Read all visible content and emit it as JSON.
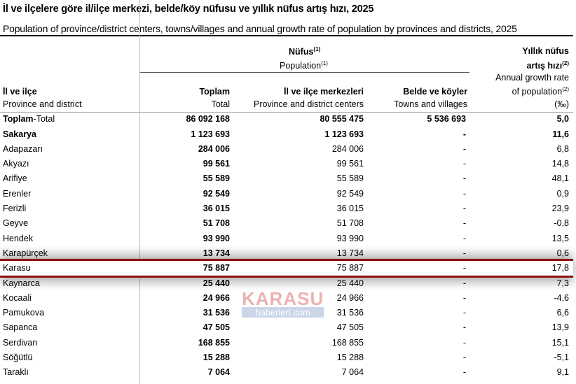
{
  "title": "İl ve ilçelere göre il/ilçe merkezi, belde/köy nüfusu ve yıllık nüfus artış hızı, 2025",
  "subtitle": "Population of province/district centers, towns/villages and annual growth rate of population by provinces and districts, 2025",
  "header": {
    "nufus": "Nüfus",
    "population": "Population",
    "sup1": "(1)",
    "sup2": "(2)",
    "rate_tr1": "Yıllık nüfus",
    "rate_tr2": "artış hızı",
    "rate_en1": "Annual growth rate",
    "rate_en2": "of population",
    "rate_unit": "(‰)",
    "col0_tr": "İl ve ilçe",
    "col0_en": "Province and district",
    "col1_tr": "Toplam",
    "col1_en": "Total",
    "col2_tr": "İl ve ilçe merkezleri",
    "col2_en": "Province and district centers",
    "col3_tr": "Belde ve köyler",
    "col3_en": "Towns and villages"
  },
  "total_row": {
    "name_bold": "Toplam",
    "name_rest": "-Total",
    "total": "86 092 168",
    "centers": "80 555 475",
    "villages": "5 536 693",
    "rate": "5,0"
  },
  "rows": [
    {
      "name": "Sakarya",
      "total": "1 123 693",
      "centers": "1 123 693",
      "villages": "-",
      "rate": "11,6",
      "bold": true
    },
    {
      "name": "Adapazarı",
      "total": "284 006",
      "centers": "284 006",
      "villages": "-",
      "rate": "6,8"
    },
    {
      "name": "Akyazı",
      "total": "99 561",
      "centers": "99 561",
      "villages": "-",
      "rate": "14,8"
    },
    {
      "name": "Arifiye",
      "total": "55 589",
      "centers": "55 589",
      "villages": "-",
      "rate": "48,1"
    },
    {
      "name": "Erenler",
      "total": "92 549",
      "centers": "92 549",
      "villages": "-",
      "rate": "0,9"
    },
    {
      "name": "Ferizli",
      "total": "36 015",
      "centers": "36 015",
      "villages": "-",
      "rate": "23,9"
    },
    {
      "name": "Geyve",
      "total": "51 708",
      "centers": "51 708",
      "villages": "-",
      "rate": "-0,8"
    },
    {
      "name": "Hendek",
      "total": "93 990",
      "centers": "93 990",
      "villages": "-",
      "rate": "13,5"
    },
    {
      "name": "Karapürçek",
      "total": "13 734",
      "centers": "13 734",
      "villages": "-",
      "rate": "0,6"
    },
    {
      "name": "Karasu",
      "total": "75 887",
      "centers": "75 887",
      "villages": "-",
      "rate": "17,8",
      "highlight": true
    },
    {
      "name": "Kaynarca",
      "total": "25 440",
      "centers": "25 440",
      "villages": "-",
      "rate": "7,3"
    },
    {
      "name": "Kocaali",
      "total": "24 966",
      "centers": "24 966",
      "villages": "-",
      "rate": "-4,6"
    },
    {
      "name": "Pamukova",
      "total": "31 536",
      "centers": "31 536",
      "villages": "-",
      "rate": "6,6"
    },
    {
      "name": "Sapanca",
      "total": "47 505",
      "centers": "47 505",
      "villages": "-",
      "rate": "13,9"
    },
    {
      "name": "Serdivan",
      "total": "168 855",
      "centers": "168 855",
      "villages": "-",
      "rate": "15,1"
    },
    {
      "name": "Söğütlü",
      "total": "15 288",
      "centers": "15 288",
      "villages": "-",
      "rate": "-5,1"
    },
    {
      "name": "Taraklı",
      "total": "7 064",
      "centers": "7 064",
      "villages": "-",
      "rate": "9,1"
    }
  ],
  "watermark": {
    "line1": "KARASU",
    "line2": "haberleri.com"
  },
  "colors": {
    "highlight_border": "#8b1010"
  }
}
